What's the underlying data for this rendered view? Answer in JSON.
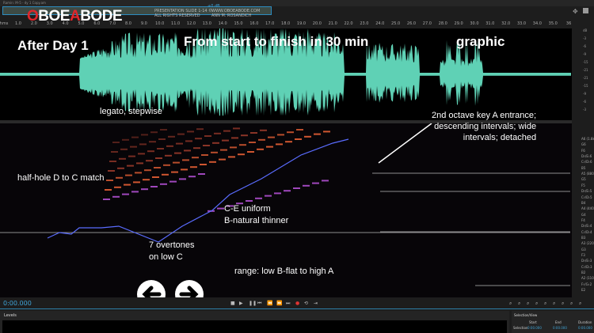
{
  "window": {
    "title": "Ramin: M-5 - dy 1 Copy.am"
  },
  "overview": {
    "credit_left_1": "PRESENTATION SLIDE 1-14 ©",
    "credit_left_2": "ALL RIGHTS RESERVED",
    "credit_right_1": "WWW.OBOEABODE.COM",
    "credit_right_2": "ANN M. ROSANDICH",
    "level": "+0 dB"
  },
  "logo": {
    "text": "OBOEABODE"
  },
  "ruler": {
    "unit": "hms",
    "ticks": [
      "1.0",
      "2.0",
      "3.0",
      "4.0",
      "5.0",
      "6.0",
      "7.0",
      "8.0",
      "9.0",
      "10.0",
      "11.0",
      "12.0",
      "13.0",
      "14.0",
      "15.0",
      "16.0",
      "17.0",
      "18.0",
      "19.0",
      "20.0",
      "21.0",
      "22.0",
      "23.0",
      "24.0",
      "25.0",
      "26.0",
      "27.0",
      "28.0",
      "29.0",
      "30.0",
      "31.0",
      "32.0",
      "33.0",
      "34.0",
      "35.0",
      "36"
    ]
  },
  "db_scale": [
    "dB",
    "-3",
    "-6",
    "-9",
    "-15",
    "-21",
    "-21",
    "-15",
    "-9",
    "-6",
    "-3"
  ],
  "annotations": {
    "day": "After Day 1",
    "title": "From start to finish in 30 min",
    "graphic": "graphic",
    "legato": "legato, stepwise",
    "octave_key": "2nd octave key A entrance;\ndescending intervals; wide\nintervals; detached",
    "halfhole": "half-hole D to C match",
    "ce": "C-E uniform\nB-natural thinner",
    "overtones": "7 overtones\non low C",
    "range": "range: low B-flat to high A"
  },
  "pitch_labels": [
    "A6 (1.8k)",
    "G6",
    "F6",
    "D♯/E♭6",
    "C♯/D♭6",
    "B5",
    "A5 (880)",
    "G5",
    "F5",
    "D♯/E♭5",
    "C♯/D♭5",
    "B4",
    "A4 (440)",
    "G4",
    "F4",
    "D♯/E♭4",
    "C♯/D♭4",
    "B3",
    "A3 (220)",
    "G3",
    "F3",
    "D♯/E♭3",
    "C♯/D♭3",
    "B2",
    "A2 (110)",
    "F♯/G♭2",
    "E2"
  ],
  "transport": {
    "time": "0:00.000"
  },
  "levels": {
    "title": "Levels"
  },
  "selection_view": {
    "title": "Selection/View",
    "col_start": "Start",
    "col_end": "End",
    "col_duration": "Duration",
    "row": "Selection",
    "start": "0:00.000",
    "end": "0:00.000",
    "duration": "0:00.000"
  },
  "colors": {
    "waveform": "#5fd1b5",
    "accent": "#3fa3d6",
    "logo_red": "#e0262b"
  }
}
